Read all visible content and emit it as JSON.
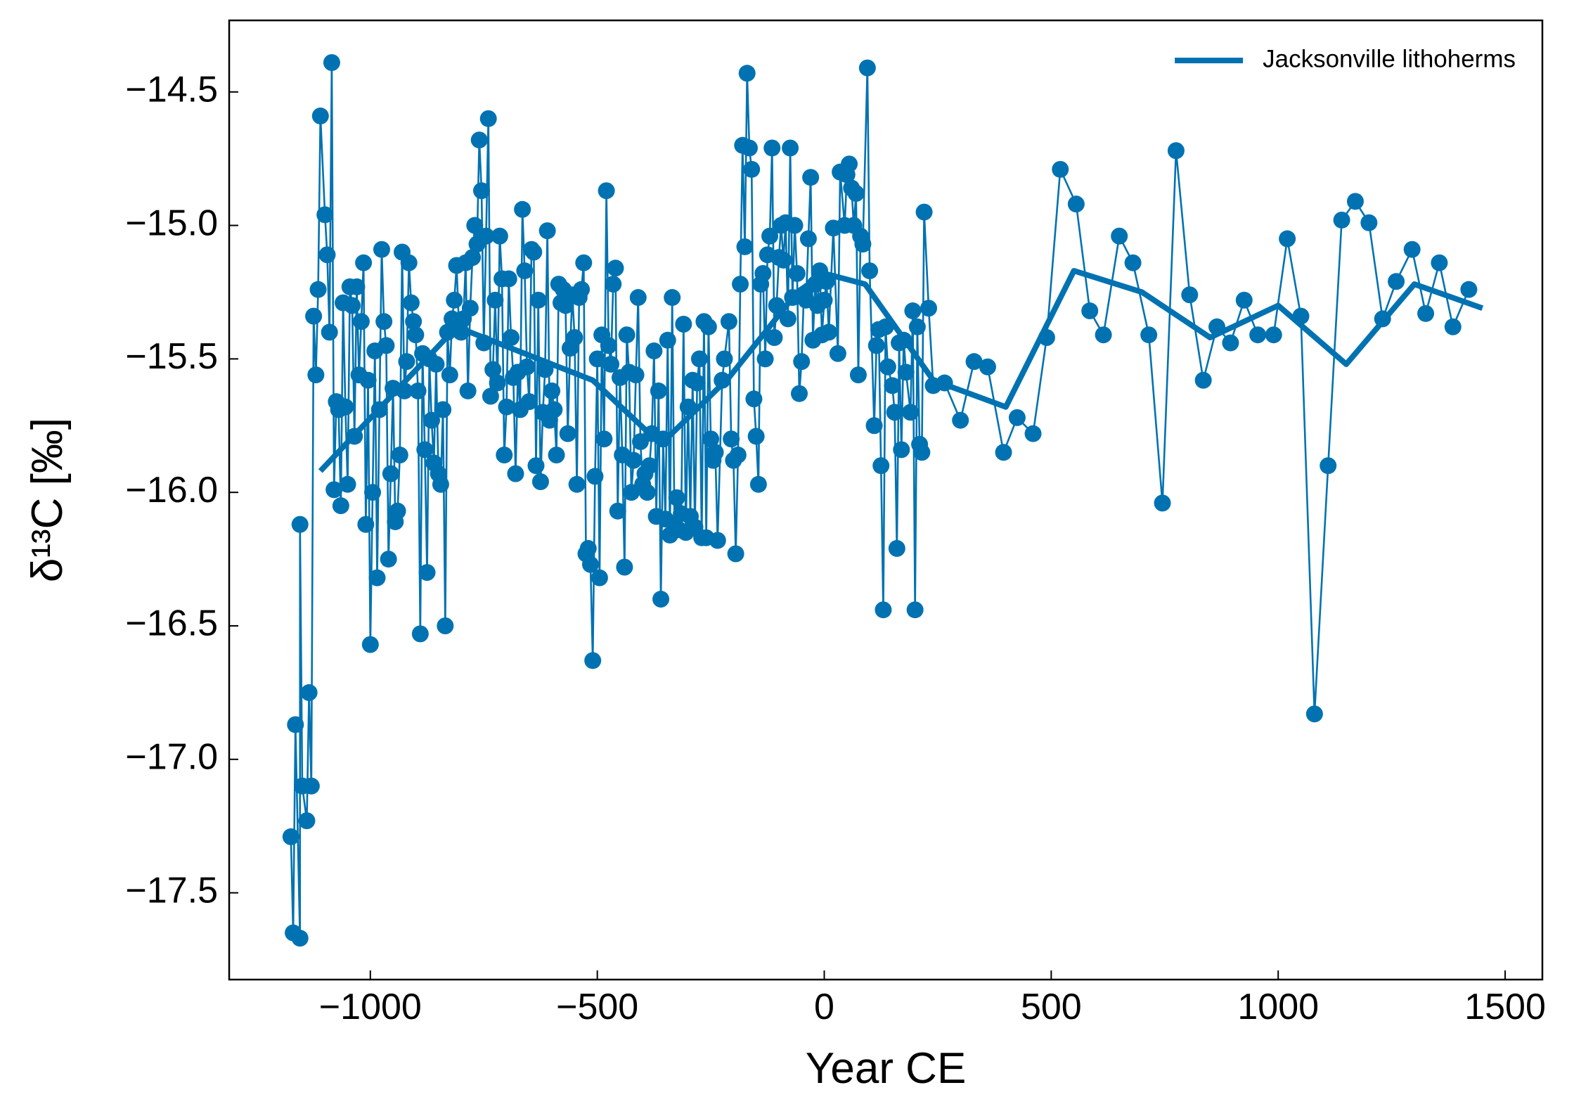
{
  "chart_data": {
    "type": "line",
    "xlabel": "Year CE",
    "ylabel": "δ¹³C [‰]",
    "xlim": [
      -1311,
      1582
    ],
    "ylim": [
      -17.825,
      -14.232
    ],
    "xticks": [
      {
        "value": -1000,
        "label": "−1000"
      },
      {
        "value": -500,
        "label": "−500"
      },
      0,
      500,
      1000,
      1500
    ],
    "yticks": [
      {
        "value": -14.5,
        "label": "−14.5"
      },
      {
        "value": -15.0,
        "label": "−15.0"
      },
      {
        "value": -15.5,
        "label": "−15.5"
      },
      {
        "value": -16.0,
        "label": "−16.0"
      },
      {
        "value": -16.5,
        "label": "−16.5"
      },
      {
        "value": -17.0,
        "label": "−17.0"
      },
      {
        "value": -17.5,
        "label": "−17.5"
      }
    ],
    "legend": "upper right",
    "series": [
      {
        "color": "#0072b2",
        "markers": true,
        "x": [
          -1175,
          -1170,
          -1165,
          -1155,
          -1155,
          -1150,
          -1140,
          -1135,
          -1130,
          -1125,
          -1120,
          -1115,
          -1110,
          -1100,
          -1095,
          -1090,
          -1085,
          -1080,
          -1075,
          -1070,
          -1065,
          -1060,
          -1055,
          -1050,
          -1045,
          -1040,
          -1035,
          -1030,
          -1025,
          -1020,
          -1015,
          -1010,
          -1005,
          -1000,
          -995,
          -990,
          -985,
          -980,
          -975,
          -970,
          -965,
          -960,
          -955,
          -950,
          -945,
          -940,
          -935,
          -930,
          -925,
          -920,
          -915,
          -910,
          -905,
          -900,
          -895,
          -890,
          -885,
          -880,
          -875,
          -870,
          -865,
          -860,
          -855,
          -850,
          -845,
          -840,
          -835,
          -830,
          -825,
          -820,
          -815,
          -810,
          -805,
          -800,
          -795,
          -790,
          -785,
          -780,
          -775,
          -770,
          -765,
          -760,
          -755,
          -750,
          -745,
          -740,
          -735,
          -730,
          -725,
          -720,
          -715,
          -710,
          -705,
          -700,
          -695,
          -690,
          -685,
          -680,
          -675,
          -670,
          -665,
          -660,
          -655,
          -650,
          -645,
          -640,
          -635,
          -630,
          -625,
          -620,
          -615,
          -610,
          -605,
          -600,
          -595,
          -590,
          -585,
          -580,
          -575,
          -570,
          -565,
          -560,
          -555,
          -550,
          -545,
          -540,
          -535,
          -530,
          -525,
          -520,
          -515,
          -510,
          -505,
          -500,
          -495,
          -490,
          -485,
          -480,
          -475,
          -470,
          -465,
          -460,
          -455,
          -450,
          -445,
          -440,
          -435,
          -430,
          -425,
          -420,
          -415,
          -410,
          -405,
          -400,
          -395,
          -390,
          -385,
          -380,
          -375,
          -370,
          -365,
          -360,
          -355,
          -350,
          -345,
          -340,
          -335,
          -330,
          -325,
          -320,
          -315,
          -310,
          -305,
          -300,
          -295,
          -290,
          -285,
          -280,
          -275,
          -270,
          -265,
          -260,
          -255,
          -250,
          -245,
          -240,
          -235,
          -225,
          -220,
          -210,
          -205,
          -200,
          -195,
          -190,
          -185,
          -180,
          -175,
          -170,
          -165,
          -160,
          -155,
          -150,
          -145,
          -140,
          -135,
          -130,
          -125,
          -120,
          -115,
          -110,
          -105,
          -100,
          -95,
          -90,
          -85,
          -80,
          -75,
          -70,
          -65,
          -60,
          -55,
          -50,
          -45,
          -40,
          -35,
          -30,
          -25,
          -20,
          -15,
          -10,
          -5,
          0,
          5,
          10,
          20,
          30,
          35,
          45,
          50,
          55,
          60,
          65,
          70,
          75,
          80,
          85,
          95,
          100,
          110,
          115,
          120,
          125,
          130,
          135,
          140,
          150,
          155,
          160,
          165,
          170,
          175,
          180,
          190,
          195,
          200,
          205,
          210,
          215,
          220,
          230,
          240,
          265,
          300,
          330,
          360,
          395,
          425,
          460,
          490,
          520,
          555,
          585,
          615,
          650,
          680,
          715,
          745,
          775,
          805,
          835,
          865,
          895,
          925,
          955,
          990,
          1020,
          1050,
          1080,
          1110,
          1140,
          1170,
          1200,
          1230,
          1260,
          1295,
          1325,
          1355,
          1385,
          1420
        ],
        "values": [
          -17.29,
          -17.65,
          -16.87,
          -17.67,
          -16.12,
          -17.1,
          -17.23,
          -16.75,
          -17.1,
          -15.34,
          -15.56,
          -15.24,
          -14.59,
          -14.96,
          -15.11,
          -15.4,
          -14.39,
          -15.99,
          -15.66,
          -15.69,
          -16.05,
          -15.29,
          -15.68,
          -15.97,
          -15.23,
          -15.3,
          -15.79,
          -15.23,
          -15.56,
          -15.36,
          -15.14,
          -16.12,
          -15.58,
          -16.57,
          -16.0,
          -15.47,
          -16.32,
          -15.69,
          -15.09,
          -15.36,
          -15.45,
          -16.25,
          -15.93,
          -15.61,
          -16.11,
          -16.07,
          -15.86,
          -15.1,
          -15.62,
          -15.51,
          -15.14,
          -15.29,
          -15.36,
          -15.41,
          -15.62,
          -16.53,
          -15.48,
          -15.84,
          -16.3,
          -15.5,
          -15.73,
          -15.89,
          -15.52,
          -15.93,
          -15.97,
          -15.69,
          -16.5,
          -15.4,
          -15.56,
          -15.35,
          -15.28,
          -15.15,
          -15.37,
          -15.4,
          -15.35,
          -15.14,
          -15.62,
          -15.31,
          -15.12,
          -15.0,
          -15.07,
          -14.68,
          -14.87,
          -15.44,
          -15.04,
          -14.6,
          -15.64,
          -15.54,
          -15.28,
          -15.59,
          -15.04,
          -15.2,
          -15.86,
          -15.68,
          -15.2,
          -15.42,
          -15.57,
          -15.93,
          -15.55,
          -15.69,
          -14.94,
          -15.17,
          -15.53,
          -15.66,
          -15.09,
          -15.1,
          -15.9,
          -15.28,
          -15.96,
          -15.7,
          -15.54,
          -15.02,
          -15.73,
          -15.62,
          -15.69,
          -15.86,
          -15.22,
          -15.29,
          -15.24,
          -15.3,
          -15.78,
          -15.46,
          -15.26,
          -15.42,
          -15.97,
          -15.27,
          -15.24,
          -15.14,
          -16.23,
          -16.21,
          -16.27,
          -16.63,
          -15.94,
          -15.5,
          -16.32,
          -15.41,
          -15.8,
          -14.87,
          -15.45,
          -15.52,
          -15.22,
          -15.16,
          -16.07,
          -15.57,
          -15.86,
          -16.28,
          -15.41,
          -15.55,
          -16.0,
          -15.88,
          -15.56,
          -15.27,
          -15.81,
          -15.97,
          -15.93,
          -16.0,
          -15.9,
          -15.78,
          -15.47,
          -16.09,
          -15.62,
          -16.4,
          -15.8,
          -16.1,
          -15.43,
          -16.16,
          -15.27,
          -16.12,
          -16.02,
          -16.14,
          -16.08,
          -15.37,
          -16.15,
          -15.68,
          -16.09,
          -15.58,
          -16.13,
          -15.59,
          -15.5,
          -16.17,
          -15.36,
          -16.17,
          -15.38,
          -15.8,
          -15.88,
          -15.85,
          -16.18,
          -15.58,
          -15.5,
          -15.36,
          -15.8,
          -15.88,
          -16.23,
          -15.86,
          -15.22,
          -14.7,
          -15.08,
          -14.43,
          -14.71,
          -14.79,
          -15.65,
          -15.79,
          -15.97,
          -15.22,
          -15.18,
          -15.5,
          -15.11,
          -15.04,
          -14.71,
          -15.42,
          -15.3,
          -15.12,
          -15.0,
          -15.13,
          -14.99,
          -15.35,
          -14.71,
          -15.27,
          -15.0,
          -15.18,
          -15.63,
          -15.51,
          -15.26,
          -15.28,
          -15.05,
          -14.82,
          -15.43,
          -15.22,
          -15.3,
          -15.17,
          -15.41,
          -15.28,
          -15.21,
          -15.4,
          -15.01,
          -15.48,
          -14.8,
          -15.0,
          -14.81,
          -14.77,
          -14.86,
          -15.0,
          -14.88,
          -15.56,
          -15.04,
          -15.07,
          -14.41,
          -15.17,
          -15.75,
          -15.45,
          -15.39,
          -15.9,
          -16.44,
          -15.38,
          -15.53,
          -15.6,
          -15.7,
          -16.21,
          -15.44,
          -15.84,
          -15.43,
          -15.55,
          -15.7,
          -15.32,
          -16.44,
          -15.38,
          -15.82,
          -15.85,
          -14.95,
          -15.31,
          -15.6,
          -15.59,
          -15.73,
          -15.51,
          -15.53,
          -15.85,
          -15.72,
          -15.78,
          -15.42,
          -14.79,
          -14.92,
          -15.32,
          -15.41,
          -15.04,
          -15.14,
          -15.41,
          -16.04,
          -14.72,
          -15.26,
          -15.58,
          -15.38,
          -15.44,
          -15.28,
          -15.41,
          -15.41,
          -15.05,
          -15.34,
          -16.83,
          -15.9,
          -14.98,
          -14.91,
          -14.99,
          -15.35,
          -15.21,
          -15.09,
          -15.33,
          -15.14,
          -15.38,
          -15.24
        ]
      },
      {
        "name": "Jacksonville lithoherms",
        "color": "#0072b2",
        "markers": false,
        "x": [
          -1110,
          -960,
          -810,
          -660,
          -510,
          -360,
          -210,
          -60,
          0,
          90,
          240,
          400,
          550,
          700,
          850,
          1000,
          1150,
          1300,
          1450
        ],
        "values": [
          -15.92,
          -15.65,
          -15.38,
          -15.48,
          -15.58,
          -15.82,
          -15.57,
          -15.25,
          -15.18,
          -15.22,
          -15.58,
          -15.68,
          -15.17,
          -15.25,
          -15.42,
          -15.3,
          -15.52,
          -15.22,
          -15.31
        ]
      }
    ]
  }
}
